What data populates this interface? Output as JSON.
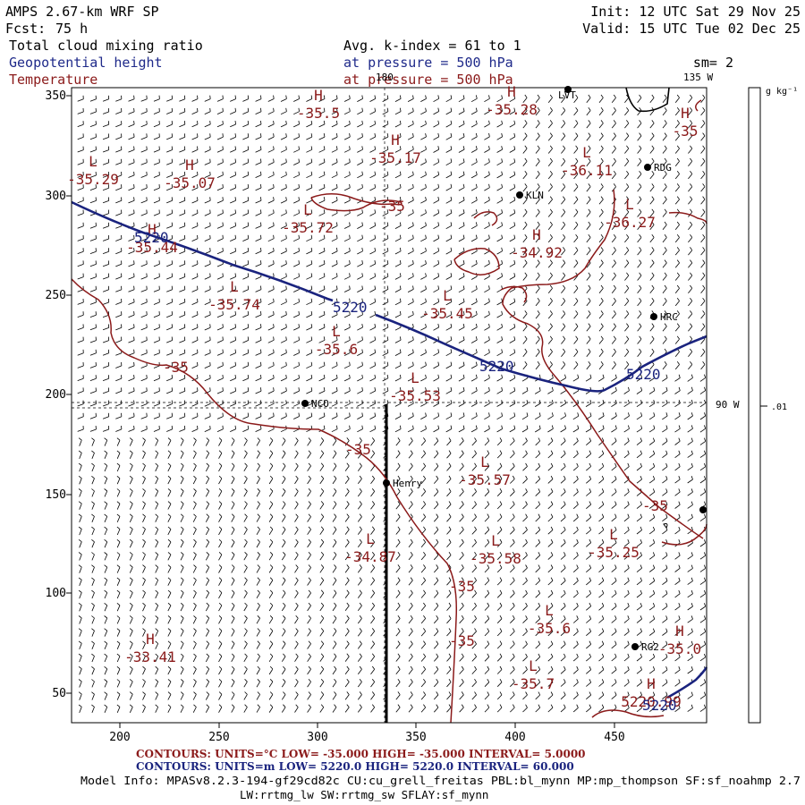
{
  "header": {
    "model": "AMPS 2.67-km WRF SP",
    "init": "Init: 12 UTC Sat 29 Nov 25",
    "forecast_label": "Fcst:",
    "forecast_value": "75 h",
    "valid": "Valid: 15 UTC Tue 02 Dec 25",
    "field1": "Total cloud mixing ratio",
    "field2": "Geopotential height",
    "field3": "Temperature",
    "avg_line": "Avg. k-index =  61 to   1",
    "pressure1": "at pressure =  500 hPa",
    "pressure2": "at pressure =  500 hPa",
    "sm": "sm= 2"
  },
  "colors": {
    "temperature": "#8b1a1a",
    "height": "#1a237e",
    "field1": "#000000",
    "field2": "#1f2a8a",
    "field3": "#8b1a1a",
    "footer_temp": "#8b1a1a",
    "footer_height": "#1a237e",
    "barbs": "#000000"
  },
  "map": {
    "x_ticks": [
      "200",
      "250",
      "300",
      "350",
      "400",
      "450"
    ],
    "y_ticks": [
      "350",
      "300",
      "250",
      "200",
      "150",
      "100",
      "50"
    ],
    "meridians": [
      {
        "label": "180"
      },
      {
        "label": "135 W"
      },
      {
        "label": "90 W"
      }
    ],
    "stations": [
      {
        "name": "NCO"
      },
      {
        "name": "Henry"
      },
      {
        "name": "KLN"
      },
      {
        "name": "RDG"
      },
      {
        "name": "HRC"
      },
      {
        "name": "LVT"
      },
      {
        "name": "RG2"
      }
    ],
    "temp_extrema": [
      {
        "symbol": "H",
        "value": "-35.5"
      },
      {
        "symbol": "H",
        "value": "-35.28"
      },
      {
        "symbol": "H",
        "value": "-35.17"
      },
      {
        "symbol": "H",
        "value": "-35"
      },
      {
        "symbol": "L",
        "value": "-35.29"
      },
      {
        "symbol": "H",
        "value": "-35.07"
      },
      {
        "symbol": "L",
        "value": "-36.11"
      },
      {
        "symbol": "L",
        "value": "-35.72"
      },
      {
        "symbol": "H",
        "value": "-35.44"
      },
      {
        "symbol": "L",
        "value": "-36.27"
      },
      {
        "symbol": "H",
        "value": "-34.92"
      },
      {
        "symbol": "L",
        "value": "-35.74"
      },
      {
        "symbol": "L",
        "value": "-35.45"
      },
      {
        "symbol": "L",
        "value": "-35.6"
      },
      {
        "symbol": "L",
        "value": "-35.53"
      },
      {
        "symbol": "L",
        "value": "-35.57"
      },
      {
        "symbol": "L",
        "value": "-35.25"
      },
      {
        "symbol": "L",
        "value": "-34.87"
      },
      {
        "symbol": "L",
        "value": "-35.58"
      },
      {
        "symbol": "L",
        "value": "-35.6"
      },
      {
        "symbol": "H",
        "value": "-35.0"
      },
      {
        "symbol": "H",
        "value": "-33.41"
      },
      {
        "symbol": "L",
        "value": "-35.7"
      },
      {
        "symbol": "H",
        "value": "5220.99"
      }
    ],
    "contour_labels": {
      "height": [
        "5220",
        "5220",
        "5220",
        "5220",
        "5220"
      ],
      "temperature": [
        "-35",
        "-35",
        "-35",
        "-35",
        "-35",
        "-35"
      ]
    }
  },
  "colorbar": {
    "unit": "g kg⁻¹",
    "value": ".01"
  },
  "footer": {
    "temp_contours": "CONTOURS:  UNITS=°C  LOW= -35.000      HIGH= -35.000      INTERVAL=   5.0000",
    "height_contours": "CONTOURS:  UNITS=m   LOW=  5220.0      HIGH=  5220.0      INTERVAL=   60.000",
    "model_info_1": "Model Info: MPASv8.2.3-194-gf29cd82c CU:cu_grell_freitas PBL:bl_mynn MP:mp_thompson SF:sf_noahmp 2.7",
    "model_info_2": "LW:rrtmg_lw SW:rrtmg_sw SFLAY:sf_mynn"
  }
}
